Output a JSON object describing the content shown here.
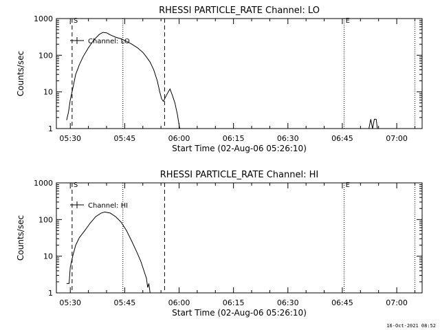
{
  "chart_data": [
    {
      "type": "line",
      "title": "RHESSI PARTICLE_RATE Channel: LO",
      "xlabel": "Start Time (02-Aug-06 05:26:10)",
      "ylabel": "Counts/sec",
      "yscale": "log",
      "ylim": [
        1,
        1000
      ],
      "xlim": [
        "05:26:10",
        "07:07:00"
      ],
      "xticks": [
        "05:30",
        "05:45",
        "06:00",
        "06:15",
        "06:30",
        "06:45",
        "07:00"
      ],
      "yticks": [
        "1",
        "10",
        "100",
        "1000"
      ],
      "legend": {
        "position": "top-left",
        "entries": [
          "Channel: LO"
        ]
      },
      "grid": false,
      "markers": [
        {
          "time": "05:30:30",
          "style": "dashed",
          "label": "S"
        },
        {
          "time": "05:44:30",
          "style": "dotted",
          "label": ""
        },
        {
          "time": "05:56:00",
          "style": "dashed",
          "label": ""
        },
        {
          "time": "06:45:30",
          "style": "dotted",
          "label": "E"
        },
        {
          "time": "07:05:00",
          "style": "dotted",
          "label": ""
        }
      ],
      "series": [
        {
          "name": "Channel: LO",
          "segments": [
            [
              [
                "05:29:00",
                1.7
              ],
              [
                "05:29:30",
                2.8
              ],
              [
                "05:30:00",
                6
              ],
              [
                "05:30:40",
                12
              ],
              [
                "05:31:30",
                30
              ],
              [
                "05:32:30",
                55
              ],
              [
                "05:33:30",
                90
              ],
              [
                "05:35:00",
                160
              ],
              [
                "05:36:30",
                260
              ],
              [
                "05:38:00",
                370
              ],
              [
                "05:39:00",
                420
              ],
              [
                "05:40:00",
                410
              ],
              [
                "05:41:00",
                360
              ],
              [
                "05:42:30",
                310
              ],
              [
                "05:44:00",
                280
              ],
              [
                "05:45:30",
                240
              ],
              [
                "05:47:00",
                200
              ],
              [
                "05:48:30",
                160
              ],
              [
                "05:50:00",
                120
              ],
              [
                "05:51:00",
                90
              ],
              [
                "05:52:00",
                65
              ],
              [
                "05:53:00",
                40
              ],
              [
                "05:54:00",
                20
              ],
              [
                "05:54:40",
                10
              ],
              [
                "05:55:10",
                6.5
              ],
              [
                "05:55:40",
                5.5
              ],
              [
                "05:56:20",
                7.5
              ],
              [
                "05:57:00",
                10
              ],
              [
                "05:57:30",
                12
              ],
              [
                "05:58:10",
                8
              ],
              [
                "05:58:50",
                5
              ],
              [
                "05:59:30",
                2.5
              ],
              [
                "06:00:10",
                1
              ]
            ],
            [
              [
                "06:52:20",
                1
              ],
              [
                "06:52:50",
                1.8
              ],
              [
                "06:53:20",
                1
              ],
              [
                "06:53:50",
                1.8
              ],
              [
                "06:54:20",
                1.8
              ],
              [
                "06:54:40",
                1
              ]
            ]
          ]
        }
      ]
    },
    {
      "type": "line",
      "title": "RHESSI PARTICLE_RATE Channel: HI",
      "xlabel": "Start Time (02-Aug-06 05:26:10)",
      "ylabel": "Counts/sec",
      "yscale": "log",
      "ylim": [
        1,
        1000
      ],
      "xlim": [
        "05:26:10",
        "07:07:00"
      ],
      "xticks": [
        "05:30",
        "05:45",
        "06:00",
        "06:15",
        "06:30",
        "06:45",
        "07:00"
      ],
      "yticks": [
        "1",
        "10",
        "100",
        "1000"
      ],
      "legend": {
        "position": "top-left",
        "entries": [
          "Channel: HI"
        ]
      },
      "grid": false,
      "markers": [
        {
          "time": "05:30:30",
          "style": "dashed",
          "label": "S"
        },
        {
          "time": "05:44:30",
          "style": "dotted",
          "label": ""
        },
        {
          "time": "05:56:00",
          "style": "dashed",
          "label": ""
        },
        {
          "time": "06:45:30",
          "style": "dotted",
          "label": "E"
        },
        {
          "time": "07:05:00",
          "style": "dotted",
          "label": ""
        }
      ],
      "series": [
        {
          "name": "Channel: HI",
          "segments": [
            [
              [
                "05:29:00",
                1.8
              ],
              [
                "05:29:40",
                1.8
              ],
              [
                "05:30:00",
                5
              ],
              [
                "05:30:40",
                10
              ],
              [
                "05:31:30",
                20
              ],
              [
                "05:32:30",
                32
              ],
              [
                "05:34:00",
                50
              ],
              [
                "05:35:30",
                80
              ],
              [
                "05:37:00",
                120
              ],
              [
                "05:38:30",
                150
              ],
              [
                "05:39:30",
                160
              ],
              [
                "05:41:00",
                150
              ],
              [
                "05:42:30",
                120
              ],
              [
                "05:44:00",
                85
              ],
              [
                "05:45:30",
                50
              ],
              [
                "05:47:00",
                25
              ],
              [
                "05:48:30",
                12
              ],
              [
                "05:49:30",
                7
              ],
              [
                "05:50:30",
                3.5
              ],
              [
                "05:51:00",
                2.5
              ],
              [
                "05:51:20",
                1.4
              ],
              [
                "05:51:40",
                1.8
              ],
              [
                "05:52:00",
                1
              ]
            ]
          ]
        }
      ]
    }
  ],
  "footer": "16-Oct-2021 08:52"
}
